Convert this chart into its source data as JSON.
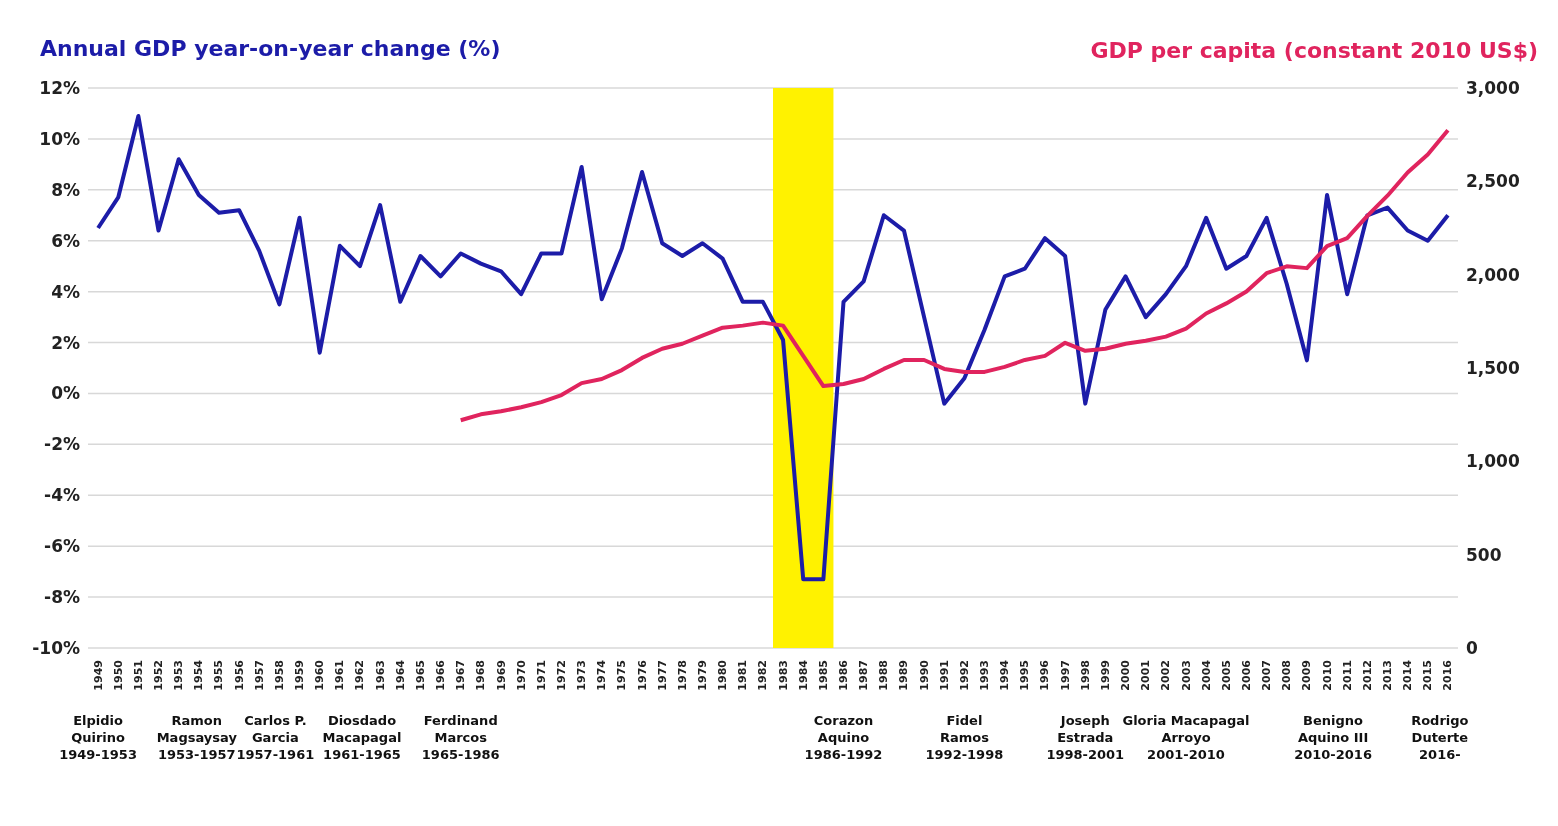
{
  "chart_data": {
    "type": "line",
    "ylabel": "Annual GDP year-on-year change (%)",
    "y2label": "GDP per capita (constant 2010 US$)",
    "categories": [
      "1949",
      "1950",
      "1951",
      "1952",
      "1953",
      "1954",
      "1955",
      "1956",
      "1957",
      "1958",
      "1959",
      "1960",
      "1961",
      "1962",
      "1963",
      "1964",
      "1965",
      "1966",
      "1967",
      "1968",
      "1969",
      "1970",
      "1971",
      "1972",
      "1973",
      "1974",
      "1975",
      "1976",
      "1977",
      "1978",
      "1979",
      "1980",
      "1981",
      "1982",
      "1983",
      "1984",
      "1985",
      "1986",
      "1987",
      "1988",
      "1989",
      "1990",
      "1991",
      "1992",
      "1993",
      "1994",
      "1995",
      "1996",
      "1997",
      "1998",
      "1999",
      "2000",
      "2001",
      "2002",
      "2003",
      "2004",
      "2005",
      "2006",
      "2007",
      "2008",
      "2009",
      "2010",
      "2011",
      "2012",
      "2013",
      "2014",
      "2015",
      "2016"
    ],
    "series": [
      {
        "color": "#1c1ca8",
        "values": [
          6.5,
          7.7,
          10.9,
          6.4,
          9.2,
          7.8,
          7.1,
          7.2,
          5.6,
          3.5,
          6.9,
          1.6,
          5.8,
          5.0,
          7.4,
          3.6,
          5.4,
          4.6,
          5.5,
          5.1,
          4.8,
          3.9,
          5.5,
          5.5,
          8.9,
          3.7,
          5.7,
          8.7,
          5.9,
          5.4,
          5.9,
          5.3,
          3.6,
          3.6,
          2.1,
          -7.3,
          -7.3,
          3.6,
          4.4,
          7.0,
          6.4,
          3.0,
          -0.4,
          0.6,
          2.5,
          4.6,
          4.9,
          6.1,
          5.4,
          -0.4,
          3.3,
          4.6,
          3.0,
          3.9,
          5.0,
          6.9,
          4.9,
          5.4,
          6.9,
          4.3,
          1.3,
          7.8,
          3.9,
          7.0,
          7.3,
          6.4,
          6.0,
          7.0
        ]
      },
      {
        "color": "#e0245e",
        "axis": "y2",
        "values": [
          null,
          null,
          null,
          null,
          null,
          null,
          null,
          null,
          null,
          null,
          null,
          null,
          null,
          null,
          null,
          null,
          null,
          null,
          1220,
          1252,
          1268,
          1290,
          1317,
          1355,
          1419,
          1441,
          1489,
          1554,
          1603,
          1630,
          1673,
          1716,
          1727,
          1743,
          1727,
          1565,
          1403,
          1414,
          1441,
          1495,
          1543,
          1543,
          1495,
          1479,
          1479,
          1506,
          1543,
          1565,
          1635,
          1592,
          1603,
          1630,
          1646,
          1668,
          1711,
          1792,
          1846,
          1910,
          2008,
          2045,
          2035,
          2153,
          2196,
          2315,
          2423,
          2547,
          2644,
          2774
        ]
      }
    ],
    "ylim": [
      -10,
      12
    ],
    "yticks": [
      {
        "value": -10,
        "label": "-10%"
      },
      {
        "value": -8,
        "label": "-8%"
      },
      {
        "value": -6,
        "label": "-6%"
      },
      {
        "value": -4,
        "label": "-4%"
      },
      {
        "value": -2,
        "label": "-2%"
      },
      {
        "value": 0,
        "label": "0%"
      },
      {
        "value": 2,
        "label": "2%"
      },
      {
        "value": 4,
        "label": "4%"
      },
      {
        "value": 6,
        "label": "6%"
      },
      {
        "value": 8,
        "label": "8%"
      },
      {
        "value": 10,
        "label": "10%"
      },
      {
        "value": 12,
        "label": "12%"
      }
    ],
    "y2lim": [
      0,
      3000
    ],
    "y2ticks": [
      0,
      {
        "value": 500,
        "label": "500"
      },
      {
        "value": 1000,
        "label": "1,000"
      },
      {
        "value": 1500,
        "label": "1,500"
      },
      {
        "value": 2000,
        "label": "2,000"
      },
      {
        "value": 2500,
        "label": "2,500"
      },
      {
        "value": 3000,
        "label": "3,000"
      }
    ],
    "bands": [
      {
        "axis": "x",
        "from": "1983",
        "to": "1985",
        "color": "#fff200"
      }
    ],
    "grid": "y",
    "marker": "none",
    "line_style": "solid",
    "annotations": [
      "Elpidio\nQuirino\n1949-1953",
      "Ramon\nMagsaysay\n1953-1957",
      "Carlos P.\nGarcia\n1957-1961",
      "Diosdado\nMacapagal\n1961-1965",
      "Ferdinand\nMarcos\n1965-1986",
      "Corazon\nAquino\n1986-1992",
      "Fidel\nRamos\n1992-1998",
      "Joseph\nEstrada\n1998-2001",
      "Gloria Macapagal\nArroyo\n2001-2010",
      "Benigno\nAquino III\n2010-2016",
      "Rodrigo\nDuterte\n2016-"
    ]
  }
}
